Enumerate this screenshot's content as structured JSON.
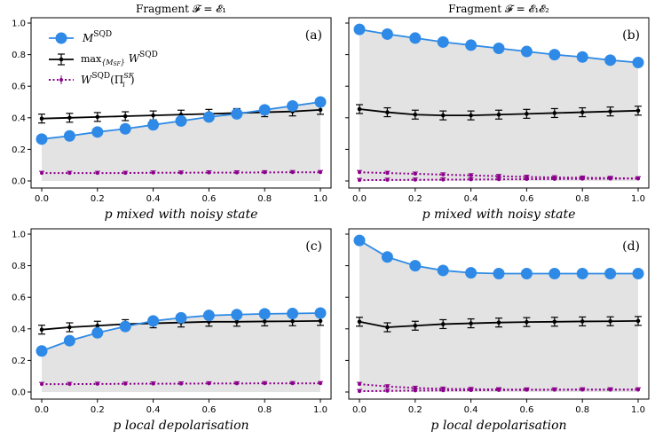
{
  "column_titles": [
    "Fragment 𝓕 = 𝓔₁",
    "Fragment 𝓕 = 𝓔₁𝓔₂"
  ],
  "legend": {
    "m_label": "M^SQD",
    "w_label": "max{M_SF} W^SQD",
    "wt_label": "W^SQD(Π_i^SF)"
  },
  "colors": {
    "m": "#2e8ae6",
    "w": "#000000",
    "wt": "#8b008b",
    "fill": "#e3e3e3"
  },
  "chart_data": [
    {
      "panel": "(a)",
      "type": "line",
      "xlabel": "p mixed with noisy state",
      "x": [
        0,
        0.1,
        0.2,
        0.3,
        0.4,
        0.5,
        0.6,
        0.7,
        0.8,
        0.9,
        1.0
      ],
      "ylim": [
        0,
        1
      ],
      "xlim": [
        0,
        1
      ],
      "series": [
        {
          "name": "M^SQD",
          "values": [
            0.265,
            0.285,
            0.31,
            0.33,
            0.355,
            0.38,
            0.405,
            0.425,
            0.45,
            0.475,
            0.5
          ]
        },
        {
          "name": "max W^SQD",
          "values": [
            0.395,
            0.4,
            0.405,
            0.41,
            0.415,
            0.42,
            0.425,
            0.43,
            0.435,
            0.44,
            0.45
          ]
        },
        {
          "name": "W^SQD(Pi)",
          "values": [
            [
              0.05,
              0.05,
              0.05,
              0.05,
              0.052,
              0.052,
              0.053,
              0.053,
              0.054,
              0.055,
              0.055
            ]
          ]
        }
      ]
    },
    {
      "panel": "(b)",
      "type": "line",
      "xlabel": "p mixed with noisy state",
      "x": [
        0,
        0.1,
        0.2,
        0.3,
        0.4,
        0.5,
        0.6,
        0.7,
        0.8,
        0.9,
        1.0
      ],
      "ylim": [
        0,
        1
      ],
      "xlim": [
        0,
        1
      ],
      "series": [
        {
          "name": "M^SQD",
          "values": [
            0.96,
            0.93,
            0.905,
            0.88,
            0.86,
            0.84,
            0.82,
            0.8,
            0.785,
            0.765,
            0.75
          ]
        },
        {
          "name": "max W^SQD",
          "values": [
            0.455,
            0.435,
            0.42,
            0.415,
            0.415,
            0.42,
            0.425,
            0.43,
            0.435,
            0.44,
            0.445
          ]
        },
        {
          "name": "W^SQD(Pi)",
          "values": [
            [
              0.055,
              0.05,
              0.045,
              0.04,
              0.035,
              0.03,
              0.025,
              0.022,
              0.02,
              0.018,
              0.015
            ],
            [
              0.005,
              0.006,
              0.007,
              0.008,
              0.009,
              0.01,
              0.011,
              0.012,
              0.013,
              0.014,
              0.015
            ]
          ]
        }
      ]
    },
    {
      "panel": "(c)",
      "type": "line",
      "xlabel": "p local depolarisation",
      "x": [
        0,
        0.1,
        0.2,
        0.3,
        0.4,
        0.5,
        0.6,
        0.7,
        0.8,
        0.9,
        1.0
      ],
      "ylim": [
        0,
        1
      ],
      "xlim": [
        0,
        1
      ],
      "series": [
        {
          "name": "M^SQD",
          "values": [
            0.26,
            0.325,
            0.375,
            0.415,
            0.45,
            0.47,
            0.485,
            0.49,
            0.495,
            0.497,
            0.5
          ]
        },
        {
          "name": "max W^SQD",
          "values": [
            0.395,
            0.41,
            0.42,
            0.43,
            0.435,
            0.44,
            0.445,
            0.445,
            0.447,
            0.448,
            0.45
          ]
        },
        {
          "name": "W^SQD(Pi)",
          "values": [
            [
              0.05,
              0.05,
              0.051,
              0.052,
              0.053,
              0.053,
              0.054,
              0.054,
              0.055,
              0.055,
              0.055
            ]
          ]
        }
      ]
    },
    {
      "panel": "(d)",
      "type": "line",
      "xlabel": "p local depolarisation",
      "x": [
        0,
        0.1,
        0.2,
        0.3,
        0.4,
        0.5,
        0.6,
        0.7,
        0.8,
        0.9,
        1.0
      ],
      "ylim": [
        0,
        1
      ],
      "xlim": [
        0,
        1
      ],
      "series": [
        {
          "name": "M^SQD",
          "values": [
            0.96,
            0.855,
            0.8,
            0.77,
            0.755,
            0.75,
            0.75,
            0.75,
            0.75,
            0.75,
            0.75
          ]
        },
        {
          "name": "max W^SQD",
          "values": [
            0.445,
            0.41,
            0.42,
            0.43,
            0.435,
            0.44,
            0.443,
            0.445,
            0.447,
            0.448,
            0.45
          ]
        },
        {
          "name": "W^SQD(Pi)",
          "values": [
            [
              0.05,
              0.035,
              0.025,
              0.02,
              0.018,
              0.016,
              0.015,
              0.015,
              0.015,
              0.015,
              0.015
            ],
            [
              0.005,
              0.007,
              0.009,
              0.01,
              0.011,
              0.012,
              0.013,
              0.014,
              0.015,
              0.015,
              0.015
            ]
          ]
        }
      ]
    }
  ]
}
